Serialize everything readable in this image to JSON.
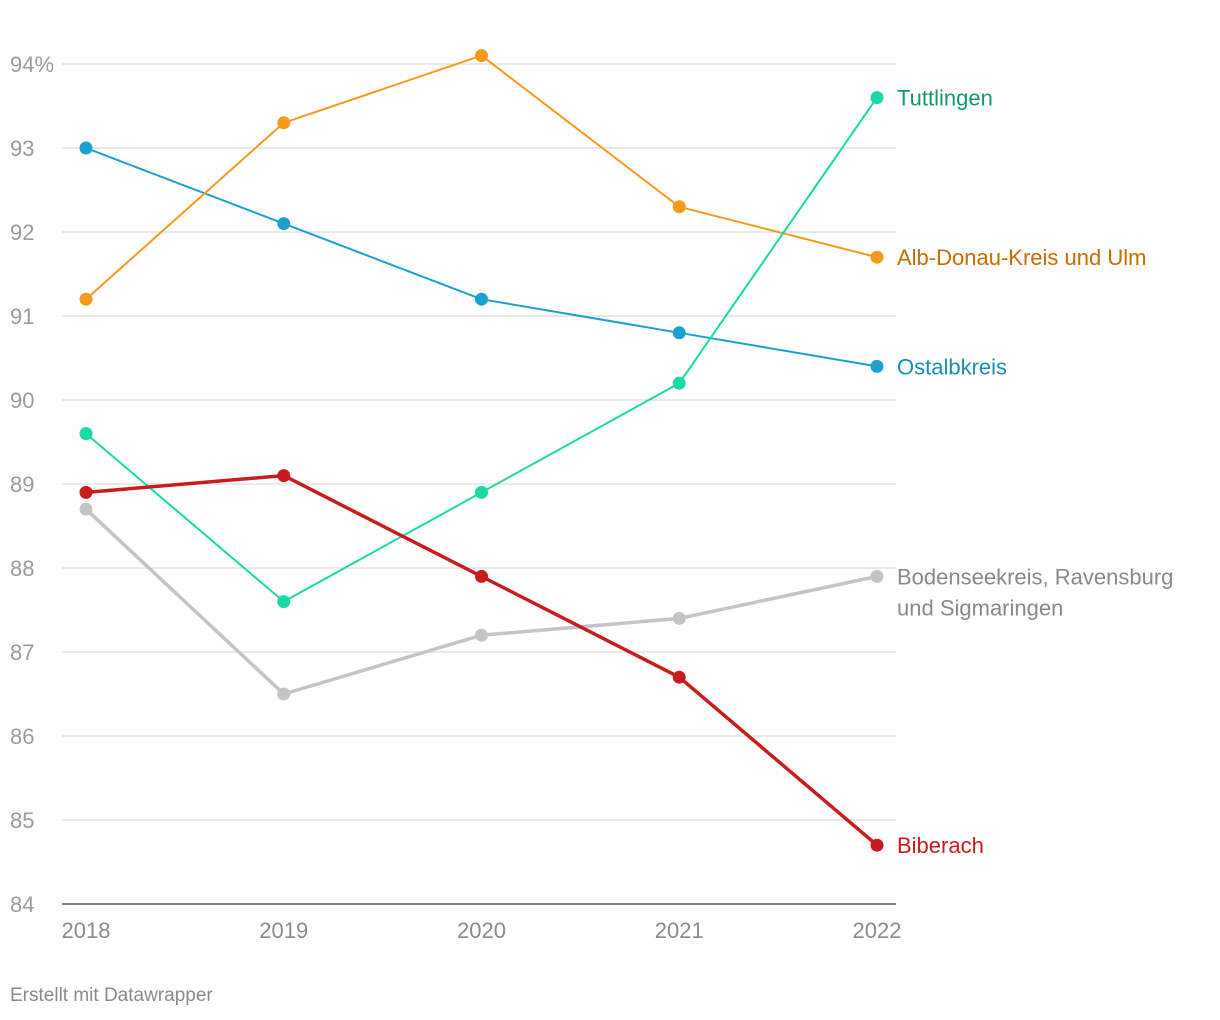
{
  "chart_data": {
    "type": "line",
    "title": "",
    "xlabel": "",
    "ylabel": "",
    "x": [
      2018,
      2019,
      2020,
      2021,
      2022
    ],
    "ylim": [
      84,
      94
    ],
    "yticks": [
      "84",
      "85",
      "86",
      "87",
      "88",
      "89",
      "90",
      "91",
      "92",
      "93",
      "94%"
    ],
    "xticks": [
      "2018",
      "2019",
      "2020",
      "2021",
      "2022"
    ],
    "series": [
      {
        "name": "Bodenseekreis, Ravensburg und Sigmaringen",
        "label_lines": [
          "Bodenseekreis, Ravensburg",
          "und Sigmaringen"
        ],
        "color": "#c4c4c4",
        "label_color": "#888888",
        "bold": true,
        "values": [
          88.7,
          86.5,
          87.2,
          87.4,
          87.9
        ]
      },
      {
        "name": "Ostalbkreis",
        "label_lines": [
          "Ostalbkreis"
        ],
        "color": "#1ba1cf",
        "label_color": "#1a8db5",
        "bold": false,
        "values": [
          93.0,
          92.1,
          91.2,
          90.8,
          90.4
        ]
      },
      {
        "name": "Alb-Donau-Kreis und Ulm",
        "label_lines": [
          "Alb-Donau-Kreis und Ulm"
        ],
        "color": "#f7991c",
        "label_color": "#c86b00",
        "bold": false,
        "values": [
          91.2,
          93.3,
          94.1,
          92.3,
          91.7
        ]
      },
      {
        "name": "Tuttlingen",
        "label_lines": [
          "Tuttlingen"
        ],
        "color": "#19d9a5",
        "label_color": "#0f9a6e",
        "bold": false,
        "values": [
          89.6,
          87.6,
          88.9,
          90.2,
          93.6
        ]
      },
      {
        "name": "Biberach",
        "label_lines": [
          "Biberach"
        ],
        "color": "#c71e1d",
        "label_color": "#c71e1d",
        "bold": true,
        "values": [
          88.9,
          89.1,
          87.9,
          86.7,
          84.7
        ]
      }
    ]
  },
  "footer": {
    "credit": "Erstellt mit Datawrapper"
  }
}
